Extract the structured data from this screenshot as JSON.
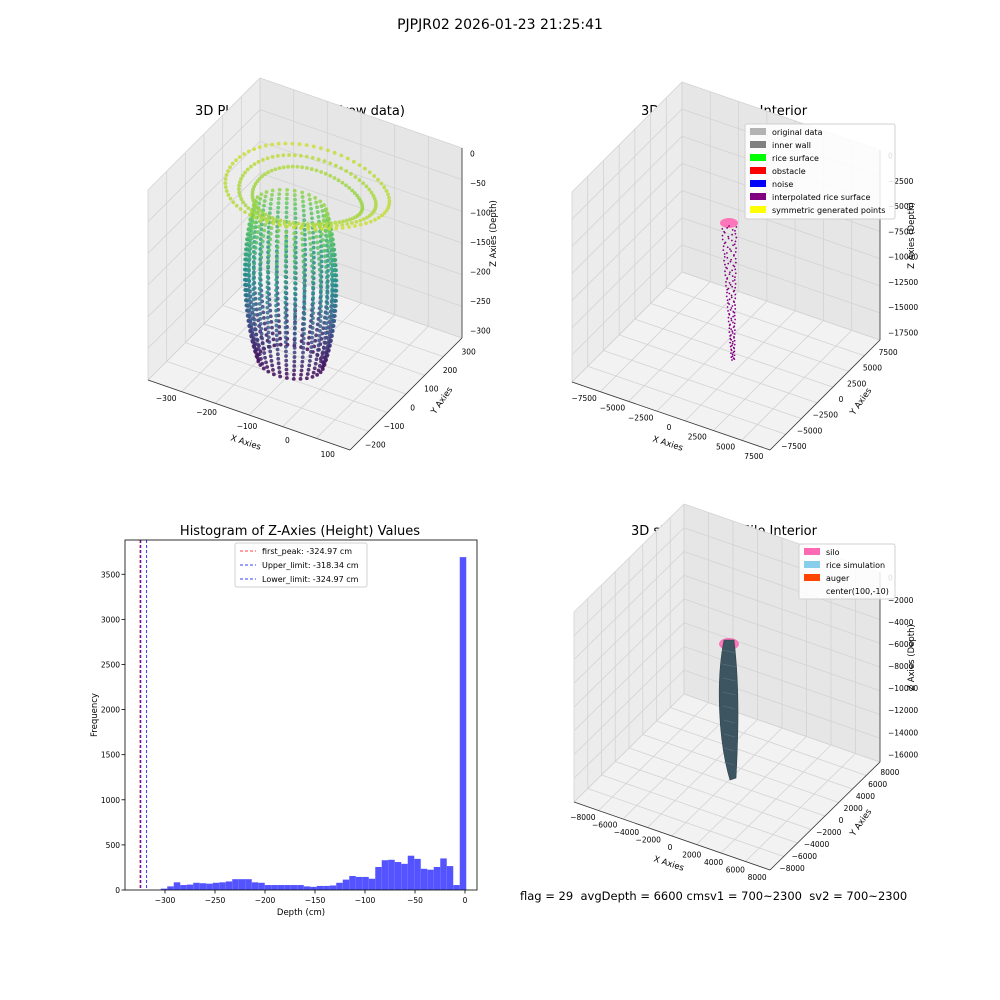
{
  "figure": {
    "suptitle": "PJPJR02 2026-01-23 21:25:41",
    "status": {
      "flag": "flag = 29",
      "avg_depth": "avgDepth = 6600 cm",
      "sv1": "sv1 = 700~2300",
      "sv2": "sv2 = 700~2300"
    }
  },
  "chart_data": [
    {
      "type": "scatter",
      "title": "3D Plot of Silo Interior(row data)",
      "xlabel": "X Axies",
      "ylabel": "Y Axies",
      "zlabel": "Z Axies (Depth)",
      "x_ticks": [
        "−300",
        "−200",
        "−100",
        "0",
        "100"
      ],
      "y_ticks": [
        "−200",
        "−100",
        "0",
        "100",
        "200",
        "300"
      ],
      "z_ticks": [
        "0",
        "−50",
        "−100",
        "−150",
        "−200",
        "−250",
        "−300"
      ],
      "xlim": [
        -330,
        130
      ],
      "ylim": [
        -230,
        330
      ],
      "zlim": [
        -330,
        5
      ],
      "colormap": "viridis",
      "description_of_shape": [
        {
          "name": "ring",
          "cx": -90,
          "cy": 40,
          "z": -25,
          "r": 170,
          "rings": 3
        },
        {
          "name": "funnel",
          "cx": -110,
          "cy": 0,
          "z_top": -50,
          "z_bottom": -320
        }
      ]
    },
    {
      "type": "scatter",
      "title": "3D classify of Silo Interior",
      "xlabel": "X Axies",
      "ylabel": "Y Axies",
      "zlabel": "Z Axies (Depth)",
      "x_ticks": [
        "−7500",
        "−5000",
        "−2500",
        "0",
        "2500",
        "5000",
        "7500"
      ],
      "y_ticks": [
        "−7500",
        "−5000",
        "−2500",
        "0",
        "2500",
        "5000",
        "7500"
      ],
      "z_ticks": [
        "0",
        "−2500",
        "−5000",
        "−7500",
        "−10000",
        "−12500",
        "−15000",
        "−17500"
      ],
      "legend": [
        {
          "label": "original data",
          "color": "#b3b3b3"
        },
        {
          "label": "inner wall",
          "color": "#808080"
        },
        {
          "label": "rice surface",
          "color": "#00ff00"
        },
        {
          "label": "obstacle",
          "color": "#ff0000"
        },
        {
          "label": "noise",
          "color": "#0000ff"
        },
        {
          "label": "interpolated rice surface",
          "color": "#800080"
        },
        {
          "label": "symmetric generated points",
          "color": "#ffff00"
        }
      ],
      "legend_loc": "upper right"
    },
    {
      "type": "bar",
      "title": "Histogram of Z-Axies (Height) Values",
      "xlabel": "Depth (cm)",
      "ylabel": "Frequency",
      "xlim": [
        -340,
        12
      ],
      "ylim": [
        0,
        3880
      ],
      "x_ticks": [
        -300,
        -250,
        -200,
        -150,
        -100,
        -50,
        0
      ],
      "y_ticks": [
        0,
        500,
        1000,
        1500,
        2000,
        2500,
        3000,
        3500
      ],
      "bin_width": 6.5,
      "bins": [
        {
          "x": -301,
          "count": 15
        },
        {
          "x": -294.5,
          "count": 40
        },
        {
          "x": -288,
          "count": 85
        },
        {
          "x": -281.5,
          "count": 55
        },
        {
          "x": -275,
          "count": 60
        },
        {
          "x": -268.5,
          "count": 80
        },
        {
          "x": -262,
          "count": 75
        },
        {
          "x": -255.5,
          "count": 70
        },
        {
          "x": -249,
          "count": 80
        },
        {
          "x": -242.5,
          "count": 85
        },
        {
          "x": -236,
          "count": 95
        },
        {
          "x": -229.5,
          "count": 120
        },
        {
          "x": -223,
          "count": 120
        },
        {
          "x": -216.5,
          "count": 120
        },
        {
          "x": -210,
          "count": 85
        },
        {
          "x": -203.5,
          "count": 80
        },
        {
          "x": -197,
          "count": 55
        },
        {
          "x": -190.5,
          "count": 55
        },
        {
          "x": -184,
          "count": 55
        },
        {
          "x": -177.5,
          "count": 55
        },
        {
          "x": -171,
          "count": 55
        },
        {
          "x": -164.5,
          "count": 55
        },
        {
          "x": -158,
          "count": 40
        },
        {
          "x": -151.5,
          "count": 35
        },
        {
          "x": -145,
          "count": 45
        },
        {
          "x": -138.5,
          "count": 45
        },
        {
          "x": -132,
          "count": 50
        },
        {
          "x": -125.5,
          "count": 80
        },
        {
          "x": -119,
          "count": 115
        },
        {
          "x": -112.5,
          "count": 155
        },
        {
          "x": -106,
          "count": 145
        },
        {
          "x": -99.5,
          "count": 145
        },
        {
          "x": -93,
          "count": 125
        },
        {
          "x": -86.5,
          "count": 255
        },
        {
          "x": -80,
          "count": 330
        },
        {
          "x": -73.5,
          "count": 335
        },
        {
          "x": -67,
          "count": 310
        },
        {
          "x": -60.5,
          "count": 290
        },
        {
          "x": -54,
          "count": 380
        },
        {
          "x": -47.5,
          "count": 345
        },
        {
          "x": -41,
          "count": 235
        },
        {
          "x": -34.5,
          "count": 225
        },
        {
          "x": -28,
          "count": 255
        },
        {
          "x": -21.5,
          "count": 350
        },
        {
          "x": -15,
          "count": 265
        },
        {
          "x": -8.5,
          "count": 55
        },
        {
          "x": -2,
          "count": 3690
        }
      ],
      "vlines": [
        {
          "label": "first_peak: -324.97 cm",
          "x": -324.97,
          "color": "#ff0000"
        },
        {
          "label": "Upper_limit: -318.34 cm",
          "x": -318.34,
          "color": "#0000ff"
        },
        {
          "label": "Lower_limit: -324.97 cm",
          "x": -324.97,
          "color": "#0000ff"
        }
      ],
      "bar_color": "#4a4aff",
      "legend_loc": "upper center"
    },
    {
      "type": "area",
      "title": "3D simulation of Silo Interior",
      "xlabel": "X Axies",
      "ylabel": "Y Axies",
      "zlabel": "Z Axies (Depth)",
      "x_ticks": [
        "−8000",
        "−6000",
        "−4000",
        "−2000",
        "0",
        "2000",
        "4000",
        "6000",
        "8000"
      ],
      "y_ticks": [
        "−8000",
        "−6000",
        "−4000",
        "−2000",
        "0",
        "2000",
        "4000",
        "6000",
        "8000"
      ],
      "z_ticks": [
        "0",
        "−2000",
        "−4000",
        "−6000",
        "−8000",
        "−10000",
        "−12000",
        "−14000",
        "−16000"
      ],
      "legend": [
        {
          "label": "silo",
          "color": "#ff69b4"
        },
        {
          "label": "rice simulation",
          "color": "#87ceeb"
        },
        {
          "label": "auger",
          "color": "#ff4500"
        },
        {
          "label": "center(100,-10)",
          "color": "none"
        }
      ],
      "legend_loc": "upper right"
    }
  ]
}
